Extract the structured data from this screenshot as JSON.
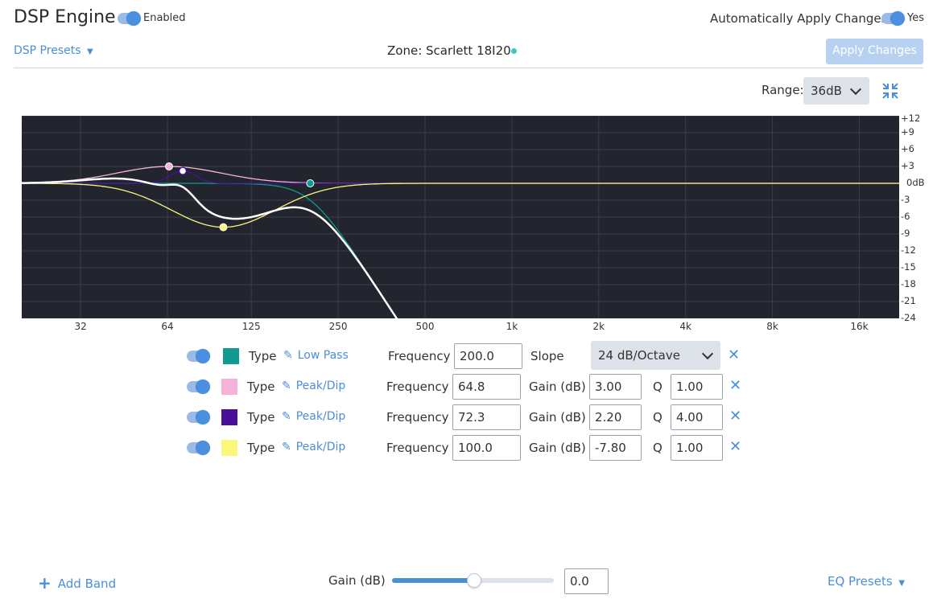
{
  "header": {
    "title": "DSP Engine",
    "enabled_label": "Enabled",
    "auto_apply_label": "Automatically Apply Changes",
    "auto_apply_value": "Yes"
  },
  "toolbar": {
    "presets_label": "DSP Presets",
    "zone_label": "Zone: Scarlett 18I20",
    "apply_label": "Apply Changes",
    "range_label": "Range:",
    "range_value": "36dB"
  },
  "chart_data": {
    "type": "line",
    "x_ticks": [
      "32",
      "64",
      "125",
      "250",
      "500",
      "1k",
      "2k",
      "4k",
      "8k",
      "16k"
    ],
    "y_ticks": [
      "+12",
      "+9",
      "+6",
      "+3",
      "0dB",
      "-3",
      "-6",
      "-9",
      "-12",
      "-15",
      "-18",
      "-21",
      "-24"
    ],
    "ylim": [
      -24,
      12
    ],
    "x_scale": "log",
    "grid": true,
    "bands": [
      {
        "type": "Low Pass",
        "color": "#0f9a94",
        "frequency": 200.0,
        "slope_db_per_octave": 24
      },
      {
        "type": "Peak/Dip",
        "color": "#f6b2d8",
        "frequency": 64.8,
        "gain": 3.0,
        "q": 1.0
      },
      {
        "type": "Peak/Dip",
        "color": "#4a0f9a",
        "frequency": 72.3,
        "gain": 2.2,
        "q": 4.0
      },
      {
        "type": "Peak/Dip",
        "color": "#fbf77a",
        "frequency": 100.0,
        "gain": -7.8,
        "q": 1.0
      }
    ],
    "colors": {
      "background": "#22252e",
      "grid": "#3a3e49",
      "composite": "#ffffff"
    }
  },
  "bands": {
    "type_label": "Type",
    "frequency_label": "Frequency",
    "gain_label": "Gain (dB)",
    "q_label": "Q",
    "slope_label": "Slope",
    "rows": [
      {
        "type": "Low Pass",
        "frequency": "200.0",
        "slope": "24 dB/Octave",
        "color": "#0f9a94"
      },
      {
        "type": "Peak/Dip",
        "frequency": "64.8",
        "gain": "3.00",
        "q": "1.00",
        "color": "#f6b2d8"
      },
      {
        "type": "Peak/Dip",
        "frequency": "72.3",
        "gain": "2.20",
        "q": "4.00",
        "color": "#4a0f9a"
      },
      {
        "type": "Peak/Dip",
        "frequency": "100.0",
        "gain": "-7.80",
        "q": "1.00",
        "color": "#fbf77a"
      }
    ]
  },
  "footer": {
    "add_band_label": "Add Band",
    "gain_label": "Gain (dB)",
    "gain_value": "0.0",
    "gain_slider_fraction": 0.5,
    "eq_presets_label": "EQ Presets"
  },
  "colors": {
    "accent": "#4b8fd6",
    "accent_dark": "#4a8fe0",
    "status_dot": "#3dc9c0"
  }
}
